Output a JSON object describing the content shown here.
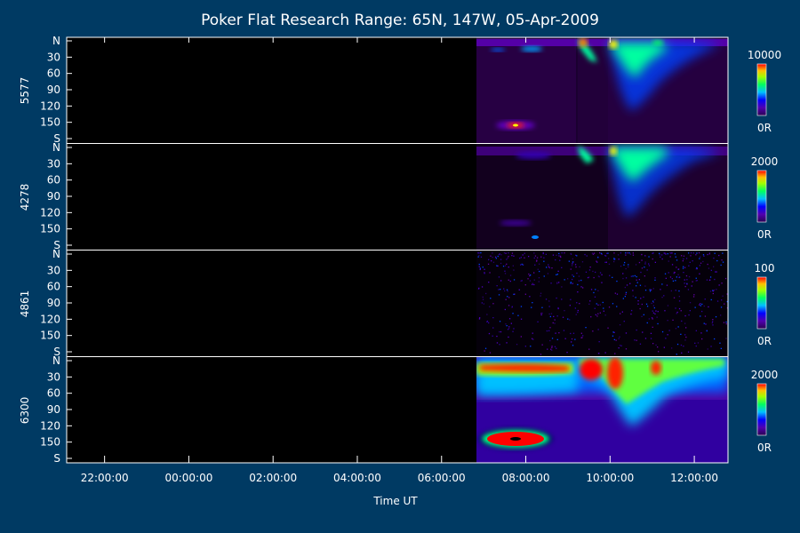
{
  "chart_data": {
    "type": "heatmap",
    "title": "Poker Flat Research Range: 65N, 147W, 05-Apr-2009",
    "xlabel": "Time UT",
    "x_ticks": [
      "22:00:00",
      "00:00:00",
      "02:00:00",
      "04:00:00",
      "06:00:00",
      "08:00:00",
      "10:00:00",
      "12:00:00"
    ],
    "x_range_hours": [
      21.1,
      12.8
    ],
    "data_start_hour": 6.85,
    "y_ticks": [
      "N",
      "30",
      "60",
      "90",
      "120",
      "150",
      "S"
    ],
    "y_range_deg": [
      0,
      180
    ],
    "panels": [
      {
        "wavelength": "5577",
        "scale_max": "10000",
        "scale_min": "0R"
      },
      {
        "wavelength": "4278",
        "scale_max": "2000",
        "scale_min": "0R"
      },
      {
        "wavelength": "4861",
        "scale_max": "100",
        "scale_min": "0R"
      },
      {
        "wavelength": "6300",
        "scale_max": "2000",
        "scale_min": "0R"
      }
    ],
    "colormap": [
      "#000000",
      "#3a0060",
      "#6000c0",
      "#0000ff",
      "#00a0ff",
      "#00ffa0",
      "#00ff00",
      "#c0ff00",
      "#ffff00",
      "#ff8000",
      "#ff0000"
    ]
  }
}
